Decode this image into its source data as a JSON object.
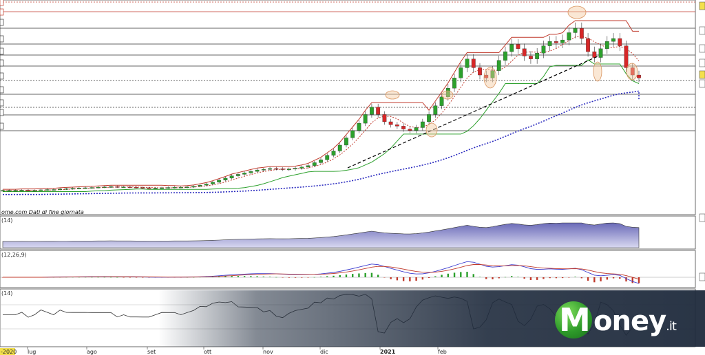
{
  "source_note": "ome.com  Dati di fine giornata",
  "indicator_labels": {
    "volume": "(14)",
    "macd": "(12,26,9)",
    "rsi": "(14)"
  },
  "brand": {
    "main": "oney",
    "initial": "M",
    "suffix": ".it"
  },
  "colors": {
    "up": "#2ca02c",
    "down": "#d62728",
    "upper_band": "#c0392b",
    "lower_band": "#2ca02c",
    "trend_line": "#000000",
    "long_ma": "#2b2bbf",
    "overlay_bg": "#1e2a3c"
  },
  "chart_data": {
    "type": "line",
    "title": "",
    "x_tick_labels": [
      "lug",
      "ago",
      "set",
      "ott",
      "nov",
      "dic",
      "2021",
      "feb"
    ],
    "left_edge_label": "-2020",
    "series": [
      {
        "values": [
          1.0,
          1.0,
          1.0,
          1.01,
          1.0,
          1.0,
          1.02,
          1.03,
          1.03,
          1.05,
          1.06,
          1.07,
          1.08,
          1.09,
          1.1,
          1.11,
          1.12,
          1.13,
          1.12,
          1.12,
          1.11,
          1.1,
          1.09,
          1.08,
          1.08,
          1.09,
          1.1,
          1.11,
          1.11,
          1.12,
          1.14,
          1.18,
          1.22,
          1.28,
          1.35,
          1.42,
          1.5,
          1.55,
          1.6,
          1.65,
          1.7,
          1.72,
          1.75,
          1.74,
          1.72,
          1.73,
          1.76,
          1.8,
          1.85,
          1.95,
          2.05,
          2.2,
          2.35,
          2.55,
          2.8,
          3.05,
          3.3,
          3.6,
          3.85,
          3.6,
          3.35,
          3.25,
          3.2,
          3.1,
          3.05,
          3.15,
          3.35,
          3.6,
          3.9,
          4.2,
          4.5,
          4.85,
          5.2,
          5.5,
          5.2,
          4.95,
          4.85,
          5.1,
          5.45,
          5.75,
          6.0,
          5.85,
          5.6,
          5.5,
          5.7,
          5.95,
          6.1,
          6.05,
          6.15,
          6.4,
          6.55,
          6.2,
          5.75,
          5.55,
          5.85,
          6.1,
          6.2,
          5.95,
          5.2,
          4.95,
          4.85
        ]
      }
    ],
    "ylim": [
      0.5,
      7.0
    ],
    "grid": true
  }
}
